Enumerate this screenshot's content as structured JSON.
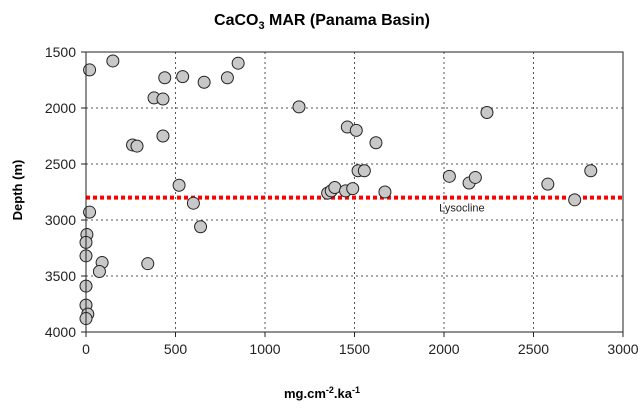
{
  "chart_data": {
    "type": "scatter",
    "title_main": "CaCO",
    "title_sub": "3",
    "title_rest": " MAR (Panama Basin)",
    "ylabel": "Depth (m)",
    "xlabel_parts": [
      "mg.cm",
      "-2",
      ".ka",
      "-1"
    ],
    "xlim": [
      0,
      3000
    ],
    "ylim": [
      4000,
      1500
    ],
    "y_inverted": true,
    "x_ticks": [
      0,
      500,
      1000,
      1500,
      2000,
      2500,
      3000
    ],
    "y_ticks": [
      1500,
      2000,
      2500,
      3000,
      3500,
      4000
    ],
    "grid": true,
    "legend": "none",
    "marker_color": "#c8c8c8",
    "marker_edge_color": "#222222",
    "lysocline": {
      "label": "Lysocline",
      "depth": 2800,
      "color": "#ff0000"
    },
    "points": [
      {
        "x": 150,
        "y": 1580
      },
      {
        "x": 20,
        "y": 1660
      },
      {
        "x": 440,
        "y": 1730
      },
      {
        "x": 540,
        "y": 1720
      },
      {
        "x": 660,
        "y": 1770
      },
      {
        "x": 790,
        "y": 1730
      },
      {
        "x": 850,
        "y": 1600
      },
      {
        "x": 380,
        "y": 1910
      },
      {
        "x": 430,
        "y": 1920
      },
      {
        "x": 430,
        "y": 2250
      },
      {
        "x": 260,
        "y": 2330
      },
      {
        "x": 285,
        "y": 2340
      },
      {
        "x": 1190,
        "y": 1990
      },
      {
        "x": 1460,
        "y": 2170
      },
      {
        "x": 1510,
        "y": 2200
      },
      {
        "x": 1620,
        "y": 2310
      },
      {
        "x": 1520,
        "y": 2560
      },
      {
        "x": 1555,
        "y": 2560
      },
      {
        "x": 1350,
        "y": 2760
      },
      {
        "x": 1370,
        "y": 2740
      },
      {
        "x": 1390,
        "y": 2710
      },
      {
        "x": 1450,
        "y": 2740
      },
      {
        "x": 1490,
        "y": 2720
      },
      {
        "x": 1670,
        "y": 2750
      },
      {
        "x": 520,
        "y": 2690
      },
      {
        "x": 600,
        "y": 2850
      },
      {
        "x": 640,
        "y": 3060
      },
      {
        "x": 2030,
        "y": 2610
      },
      {
        "x": 2140,
        "y": 2670
      },
      {
        "x": 2175,
        "y": 2620
      },
      {
        "x": 2240,
        "y": 2040
      },
      {
        "x": 2580,
        "y": 2680
      },
      {
        "x": 2730,
        "y": 2820
      },
      {
        "x": 2820,
        "y": 2560
      },
      {
        "x": 20,
        "y": 2930
      },
      {
        "x": 5,
        "y": 3130
      },
      {
        "x": 0,
        "y": 3200
      },
      {
        "x": 0,
        "y": 3320
      },
      {
        "x": 90,
        "y": 3380
      },
      {
        "x": 75,
        "y": 3460
      },
      {
        "x": 345,
        "y": 3390
      },
      {
        "x": 0,
        "y": 3590
      },
      {
        "x": 0,
        "y": 3760
      },
      {
        "x": 10,
        "y": 3840
      },
      {
        "x": 0,
        "y": 3880
      }
    ]
  }
}
